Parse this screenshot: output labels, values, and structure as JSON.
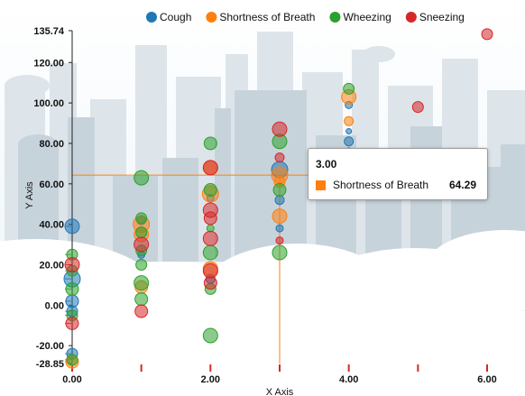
{
  "chart_data": {
    "type": "scatter",
    "xlabel": "X Axis",
    "ylabel": "Y Axis",
    "xlim": [
      0,
      6
    ],
    "ylim": [
      -28.85,
      135.74
    ],
    "x_ticks": [
      "0.00",
      "2.00",
      "4.00",
      "6.00"
    ],
    "y_ticks": [
      "135.74",
      "120.00",
      "100.00",
      "80.00",
      "60.00",
      "40.00",
      "20.00",
      "0.00",
      "-20.00",
      "-28.85"
    ],
    "legend_position": "top",
    "series": [
      {
        "name": "Cough",
        "color": "#1f77b4",
        "points": [
          {
            "x": 0,
            "y": 39,
            "size": 8
          },
          {
            "x": 0,
            "y": 13,
            "size": 9
          },
          {
            "x": 0,
            "y": 2,
            "size": 7
          },
          {
            "x": 0,
            "y": -3,
            "size": 6
          },
          {
            "x": 0,
            "y": -24,
            "size": 6
          },
          {
            "x": 1,
            "y": 42,
            "size": 5
          },
          {
            "x": 1,
            "y": 25,
            "size": 4
          },
          {
            "x": 2,
            "y": 53,
            "size": 4
          },
          {
            "x": 2,
            "y": 13,
            "size": 5
          },
          {
            "x": 3,
            "y": 67,
            "size": 9
          },
          {
            "x": 3,
            "y": 52,
            "size": 5
          },
          {
            "x": 3,
            "y": 38,
            "size": 4
          },
          {
            "x": 4,
            "y": 99,
            "size": 4
          },
          {
            "x": 4,
            "y": 86,
            "size": 3
          },
          {
            "x": 4,
            "y": 81,
            "size": 5
          },
          {
            "x": 4,
            "y": 76,
            "size": 4
          }
        ]
      },
      {
        "name": "Shortness of Breath",
        "color": "#ff7f0e",
        "points": [
          {
            "x": 0,
            "y": -28,
            "size": 7
          },
          {
            "x": 1,
            "y": 40,
            "size": 9
          },
          {
            "x": 1,
            "y": 35,
            "size": 8
          },
          {
            "x": 1,
            "y": 9,
            "size": 7
          },
          {
            "x": 2,
            "y": 68,
            "size": 8
          },
          {
            "x": 2,
            "y": 55,
            "size": 9
          },
          {
            "x": 2,
            "y": 18,
            "size": 8
          },
          {
            "x": 3,
            "y": 64.29,
            "size": 9
          },
          {
            "x": 3,
            "y": 44,
            "size": 8
          },
          {
            "x": 3,
            "y": 61,
            "size": 6
          },
          {
            "x": 4,
            "y": 103,
            "size": 8
          },
          {
            "x": 4,
            "y": 91,
            "size": 5
          }
        ]
      },
      {
        "name": "Wheezing",
        "color": "#2ca02c",
        "points": [
          {
            "x": 0,
            "y": 25,
            "size": 6
          },
          {
            "x": 0,
            "y": 17,
            "size": 6
          },
          {
            "x": 0,
            "y": 8,
            "size": 7
          },
          {
            "x": 0,
            "y": -5,
            "size": 6
          },
          {
            "x": 0,
            "y": -27,
            "size": 6
          },
          {
            "x": 1,
            "y": 63,
            "size": 8
          },
          {
            "x": 1,
            "y": 43,
            "size": 6
          },
          {
            "x": 1,
            "y": 36,
            "size": 6
          },
          {
            "x": 1,
            "y": 27,
            "size": 6
          },
          {
            "x": 1,
            "y": 20,
            "size": 6
          },
          {
            "x": 1,
            "y": 11,
            "size": 8
          },
          {
            "x": 1,
            "y": 3,
            "size": 7
          },
          {
            "x": 2,
            "y": 80,
            "size": 7
          },
          {
            "x": 2,
            "y": 57,
            "size": 7
          },
          {
            "x": 2,
            "y": 38,
            "size": 4
          },
          {
            "x": 2,
            "y": 26,
            "size": 8
          },
          {
            "x": 2,
            "y": 8,
            "size": 6
          },
          {
            "x": 2,
            "y": -15,
            "size": 8
          },
          {
            "x": 3,
            "y": 81,
            "size": 8
          },
          {
            "x": 3,
            "y": 57,
            "size": 7
          },
          {
            "x": 3,
            "y": 26,
            "size": 8
          },
          {
            "x": 4,
            "y": 107,
            "size": 6
          }
        ]
      },
      {
        "name": "Sneezing",
        "color": "#d62728",
        "points": [
          {
            "x": 0,
            "y": 20,
            "size": 8
          },
          {
            "x": 0,
            "y": -9,
            "size": 7
          },
          {
            "x": 1,
            "y": 30,
            "size": 8
          },
          {
            "x": 1,
            "y": -3,
            "size": 7
          },
          {
            "x": 2,
            "y": 68,
            "size": 8
          },
          {
            "x": 2,
            "y": 47,
            "size": 8
          },
          {
            "x": 2,
            "y": 43,
            "size": 7
          },
          {
            "x": 2,
            "y": 33,
            "size": 8
          },
          {
            "x": 2,
            "y": 17,
            "size": 8
          },
          {
            "x": 2,
            "y": 11,
            "size": 7
          },
          {
            "x": 3,
            "y": 87,
            "size": 8
          },
          {
            "x": 3,
            "y": 73,
            "size": 5
          },
          {
            "x": 3,
            "y": 32,
            "size": 4
          },
          {
            "x": 4,
            "y": 71,
            "size": 6
          },
          {
            "x": 5,
            "y": 98,
            "size": 6
          },
          {
            "x": 6,
            "y": 134,
            "size": 6
          }
        ]
      }
    ],
    "tooltip": {
      "x": "3.00",
      "series": "Shortness of Breath",
      "value": "64.29",
      "color": "#ff7f0e"
    }
  }
}
